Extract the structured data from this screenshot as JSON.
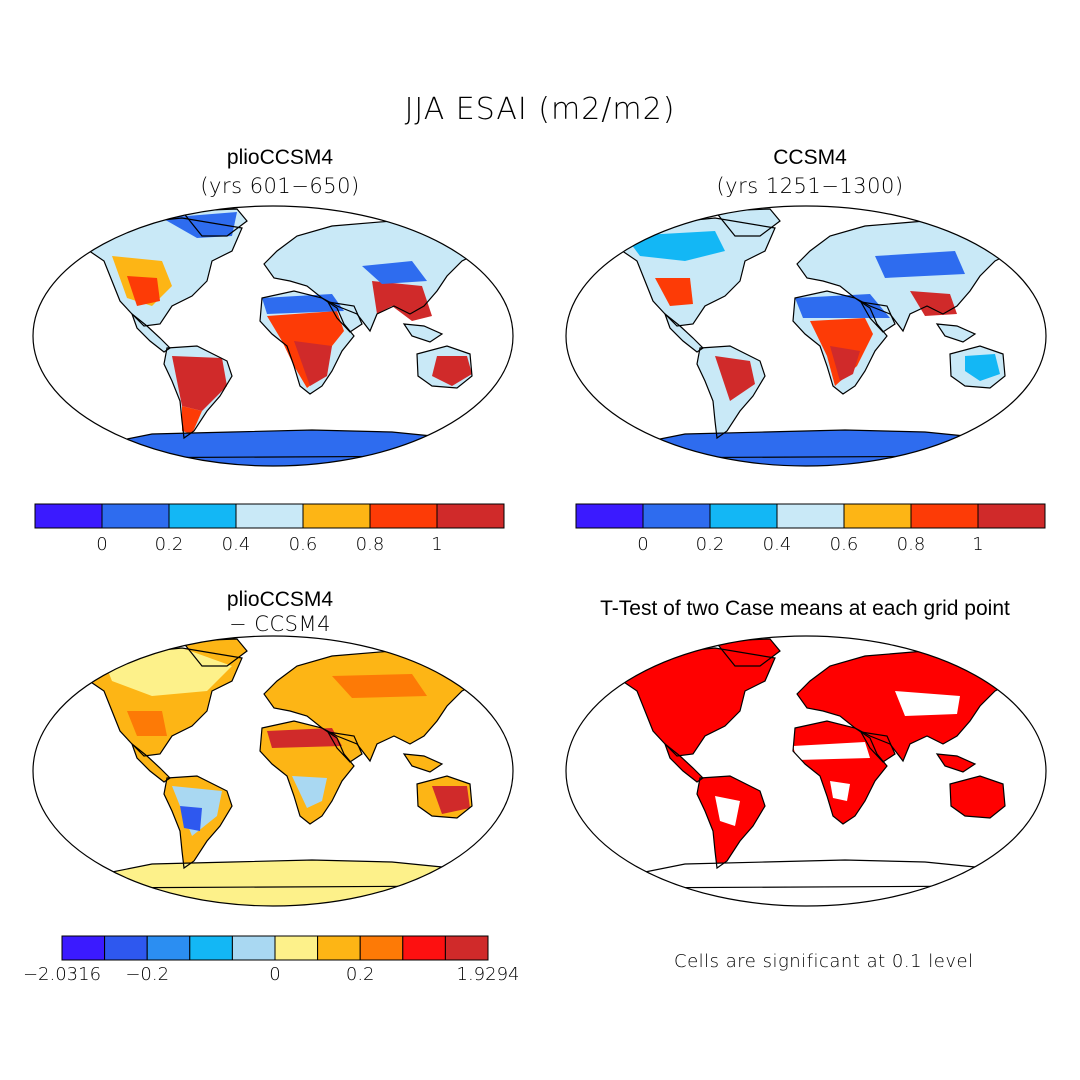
{
  "figure": {
    "title": "JJA ESAI (m2/m2)"
  },
  "panels": {
    "top_left": {
      "title": "plioCCSM4",
      "subtitle": "(yrs 601−650)"
    },
    "top_right": {
      "title": "CCSM4",
      "subtitle": "(yrs 1251−1300)"
    },
    "bottom_left": {
      "title": "plioCCSM4",
      "subtitle": "− CCSM4"
    },
    "bottom_right": {
      "title": "T-Test of two Case means at each grid point",
      "note": "Cells are significant at 0.1 level"
    }
  },
  "colorbars": {
    "mean": {
      "colors": [
        "#3b1aff",
        "#2e6cef",
        "#13b7f5",
        "#c9e9f7",
        "#fdb515",
        "#fd3b06",
        "#d02a2a"
      ],
      "ticks": [
        "0",
        "0.2",
        "0.4",
        "0.6",
        "0.8",
        "1"
      ]
    },
    "diff": {
      "colors": [
        "#3b1aff",
        "#2e58ef",
        "#2b8ef2",
        "#13b7f5",
        "#a9d8f2",
        "#fdf18a",
        "#fdb515",
        "#fd7a06",
        "#fd1010",
        "#d02a2a"
      ],
      "ticks": [
        "−2.0316",
        "−0.2",
        "0",
        "0.2",
        "1.9294"
      ]
    }
  },
  "significance_color": "#ff0000"
}
